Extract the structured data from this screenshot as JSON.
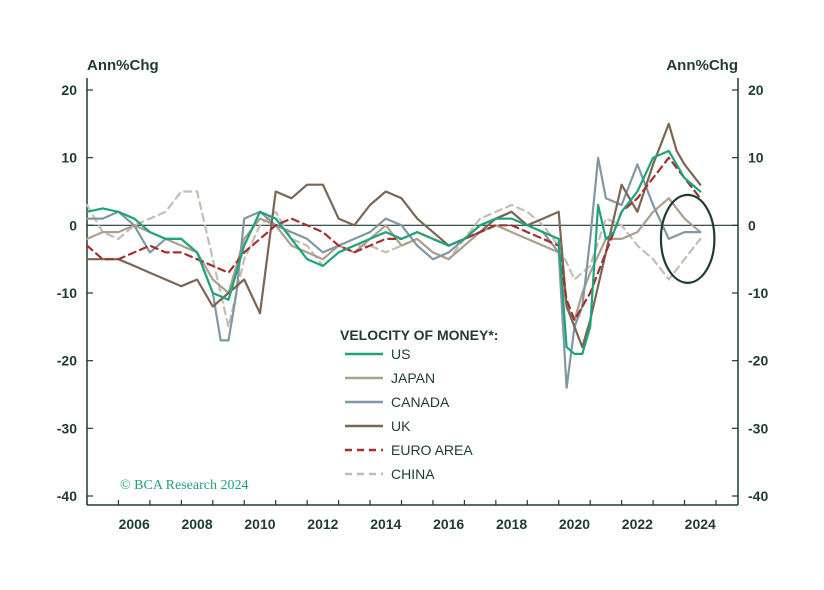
{
  "chart_data": {
    "type": "line",
    "title": "",
    "ylabel_left": "Ann%Chg",
    "ylabel_right": "Ann%Chg",
    "ylim": [
      -40,
      20
    ],
    "xlim": [
      2005.0,
      2025.7
    ],
    "yticks": [
      20,
      10,
      0,
      -10,
      -20,
      -30,
      -40
    ],
    "xticks": [
      "2006",
      "2008",
      "2010",
      "2012",
      "2014",
      "2016",
      "2018",
      "2020",
      "2022",
      "2024"
    ],
    "xtick_values": [
      2006,
      2008,
      2010,
      2012,
      2014,
      2016,
      2018,
      2020,
      2022,
      2024
    ],
    "legend_title": "VELOCITY OF MONEY*:",
    "copyright": "© BCA Research 2024",
    "series": [
      {
        "name": "US",
        "color": "#1fa37b",
        "dash": "solid",
        "x": [
          2005.0,
          2005.5,
          2006.0,
          2006.5,
          2007.0,
          2007.5,
          2008.0,
          2008.5,
          2009.0,
          2009.5,
          2010.0,
          2010.5,
          2011.0,
          2011.5,
          2012.0,
          2012.5,
          2013.0,
          2013.5,
          2014.0,
          2014.5,
          2015.0,
          2015.5,
          2016.0,
          2016.5,
          2017.0,
          2017.5,
          2018.0,
          2018.5,
          2019.0,
          2019.5,
          2020.0,
          2020.25,
          2020.5,
          2020.75,
          2021.0,
          2021.25,
          2021.5,
          2021.75,
          2022.0,
          2022.5,
          2023.0,
          2023.5,
          2024.0,
          2024.5
        ],
        "y": [
          2,
          2.5,
          2,
          1,
          -1,
          -2,
          -2,
          -4,
          -10,
          -11,
          -3,
          2,
          1,
          -2,
          -5,
          -6,
          -4,
          -3,
          -2,
          -1,
          -2,
          -1,
          -2,
          -3,
          -2,
          0,
          1,
          1,
          0,
          -1,
          -2,
          -18,
          -19,
          -19,
          -15,
          3,
          -2,
          -1,
          2,
          5,
          10,
          11,
          7,
          5
        ]
      },
      {
        "name": "JAPAN",
        "color": "#aaa08e",
        "dash": "solid",
        "x": [
          2005.0,
          2005.5,
          2006.0,
          2006.5,
          2007.0,
          2007.5,
          2008.0,
          2008.5,
          2009.0,
          2009.5,
          2010.0,
          2010.5,
          2011.0,
          2011.5,
          2012.0,
          2012.5,
          2013.0,
          2013.5,
          2014.0,
          2014.5,
          2015.0,
          2015.5,
          2016.0,
          2016.5,
          2017.0,
          2017.5,
          2018.0,
          2018.5,
          2019.0,
          2019.5,
          2020.0,
          2020.25,
          2020.5,
          2020.75,
          2021.0,
          2021.5,
          2022.0,
          2022.5,
          2023.0,
          2023.5,
          2024.0,
          2024.5
        ],
        "y": [
          -2,
          -1,
          -1,
          0,
          -1,
          -2,
          -3,
          -4,
          -8,
          -10,
          -2,
          1,
          0,
          -3,
          -4,
          -5,
          -3,
          -4,
          -2,
          0,
          -3,
          -2,
          -4,
          -5,
          -3,
          -1,
          0,
          -1,
          -2,
          -3,
          -4,
          -12,
          -14,
          -10,
          -7,
          -2,
          -2,
          -1,
          2,
          4,
          1,
          -1
        ]
      },
      {
        "name": "CANADA",
        "color": "#8197a3",
        "dash": "solid",
        "x": [
          2005.0,
          2005.5,
          2006.0,
          2006.5,
          2007.0,
          2007.5,
          2008.0,
          2008.5,
          2009.0,
          2009.25,
          2009.5,
          2009.75,
          2010.0,
          2010.5,
          2011.0,
          2011.5,
          2012.0,
          2012.5,
          2013.0,
          2013.5,
          2014.0,
          2014.5,
          2015.0,
          2015.5,
          2016.0,
          2016.5,
          2017.0,
          2017.5,
          2018.0,
          2018.5,
          2019.0,
          2019.5,
          2020.0,
          2020.25,
          2020.5,
          2020.75,
          2021.0,
          2021.25,
          2021.5,
          2022.0,
          2022.5,
          2023.0,
          2023.5,
          2024.0,
          2024.5
        ],
        "y": [
          1,
          1,
          2,
          0,
          -4,
          -2,
          -2,
          -4,
          -10,
          -17,
          -17,
          -10,
          1,
          2,
          0,
          -1,
          -2,
          -4,
          -3,
          -2,
          -1,
          1,
          0,
          -3,
          -5,
          -4,
          -2,
          0,
          1,
          2,
          0,
          -1,
          -4,
          -24,
          -15,
          -12,
          -2,
          10,
          4,
          3,
          9,
          3,
          -2,
          -1,
          -1
        ]
      },
      {
        "name": "UK",
        "color": "#7a6654",
        "dash": "solid",
        "x": [
          2005.0,
          2005.5,
          2006.0,
          2006.5,
          2007.0,
          2007.5,
          2008.0,
          2008.5,
          2009.0,
          2009.5,
          2010.0,
          2010.5,
          2011.0,
          2011.5,
          2012.0,
          2012.5,
          2013.0,
          2013.5,
          2014.0,
          2014.5,
          2015.0,
          2015.5,
          2016.0,
          2016.5,
          2017.0,
          2017.5,
          2018.0,
          2018.5,
          2019.0,
          2019.5,
          2020.0,
          2020.25,
          2020.5,
          2020.75,
          2021.0,
          2021.5,
          2022.0,
          2022.5,
          2023.0,
          2023.5,
          2023.75,
          2024.0,
          2024.5
        ],
        "y": [
          -5,
          -5,
          -5,
          -6,
          -7,
          -8,
          -9,
          -8,
          -12,
          -10,
          -8,
          -13,
          5,
          4,
          6,
          6,
          1,
          0,
          3,
          5,
          4,
          1,
          -1,
          -3,
          -2,
          -1,
          1,
          2,
          0,
          1,
          2,
          -12,
          -15,
          -18,
          -14,
          -4,
          6,
          2,
          9,
          15,
          11,
          9,
          6
        ]
      },
      {
        "name": "EURO AREA",
        "color": "#a3302f",
        "dash": "dashed",
        "x": [
          2005.0,
          2005.5,
          2006.0,
          2006.5,
          2007.0,
          2007.5,
          2008.0,
          2008.5,
          2009.0,
          2009.5,
          2010.0,
          2010.5,
          2011.0,
          2011.5,
          2012.0,
          2012.5,
          2013.0,
          2013.5,
          2014.0,
          2014.5,
          2015.0,
          2015.5,
          2016.0,
          2016.5,
          2017.0,
          2017.5,
          2018.0,
          2018.5,
          2019.0,
          2019.5,
          2020.0,
          2020.25,
          2020.5,
          2020.75,
          2021.0,
          2021.5,
          2022.0,
          2022.5,
          2023.0,
          2023.5,
          2024.0,
          2024.5
        ],
        "y": [
          -3,
          -5,
          -5,
          -4,
          -3,
          -4,
          -4,
          -5,
          -6,
          -7,
          -4,
          -2,
          0,
          1,
          0,
          -1,
          -3,
          -4,
          -3,
          -2,
          -2,
          -1,
          -2,
          -3,
          -2,
          -1,
          0,
          0,
          -1,
          -2,
          -3,
          -11,
          -14,
          -12,
          -10,
          -4,
          2,
          4,
          7,
          10,
          7,
          4
        ]
      },
      {
        "name": "CHINA",
        "color": "#c4bdb3",
        "dash": "dashed",
        "x": [
          2005.0,
          2005.5,
          2006.0,
          2006.5,
          2007.0,
          2007.5,
          2008.0,
          2008.5,
          2009.0,
          2009.5,
          2010.0,
          2010.5,
          2011.0,
          2011.5,
          2012.0,
          2012.5,
          2013.0,
          2013.5,
          2014.0,
          2014.5,
          2015.0,
          2015.5,
          2016.0,
          2016.5,
          2017.0,
          2017.5,
          2018.0,
          2018.5,
          2019.0,
          2019.5,
          2020.0,
          2020.5,
          2021.0,
          2021.5,
          2022.0,
          2022.5,
          2023.0,
          2023.5,
          2024.0,
          2024.5
        ],
        "y": [
          3,
          -1,
          -2,
          0,
          1,
          2,
          5,
          5,
          -5,
          -15,
          -5,
          0,
          2,
          -2,
          -3,
          -6,
          -4,
          -3,
          -3,
          -4,
          -3,
          -2,
          -4,
          -5,
          -2,
          1,
          2,
          3,
          2,
          0,
          -3,
          -8,
          -6,
          1,
          0,
          -3,
          -5,
          -8,
          -5,
          -2
        ]
      }
    ],
    "annotation": {
      "type": "ellipse",
      "center_x": 2024.1,
      "center_y": -2,
      "rx_years": 0.85,
      "ry_units": 6.5
    }
  }
}
